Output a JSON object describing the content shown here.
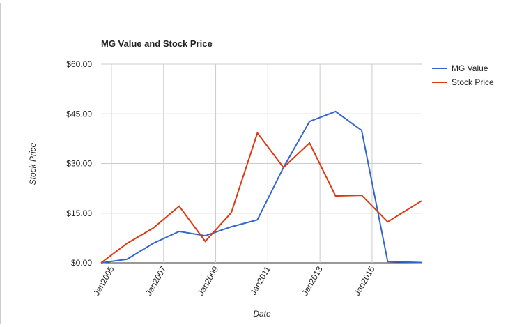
{
  "chart_data": {
    "type": "line",
    "title": "MG Value and Stock Price",
    "x_label": "Date",
    "y_label": "Stock Price",
    "x": [
      2004.6,
      2005.6,
      2006.6,
      2007.6,
      2008.6,
      2009.6,
      2010.6,
      2011.6,
      2012.6,
      2013.6,
      2014.6,
      2015.6,
      2016.9
    ],
    "series": [
      {
        "name": "MG Value",
        "color": "#3366cc",
        "values": [
          0,
          1.1,
          5.9,
          9.5,
          8.2,
          10.9,
          13,
          28.8,
          42.7,
          45.7,
          40,
          0.4,
          0.1
        ]
      },
      {
        "name": "Stock Price",
        "color": "#dc3912",
        "values": [
          0,
          5.9,
          10.5,
          17.1,
          6.5,
          15.2,
          39.2,
          28.8,
          36.2,
          20.2,
          20.4,
          12.4,
          18.7
        ]
      }
    ],
    "xlim": [
      2004.6,
      2016.9
    ],
    "xticks": [
      {
        "value": 2005,
        "label": "Jan2005"
      },
      {
        "value": 2007,
        "label": "Jan2007"
      },
      {
        "value": 2009,
        "label": "Jan2009"
      },
      {
        "value": 2011,
        "label": "Jan2011"
      },
      {
        "value": 2013,
        "label": "Jan2013"
      },
      {
        "value": 2015,
        "label": "Jan2015"
      }
    ],
    "ylim": [
      0,
      60
    ],
    "yticks": [
      {
        "value": 0,
        "label": "$0.00"
      },
      {
        "value": 15,
        "label": "$15.00"
      },
      {
        "value": 30,
        "label": "$30.00"
      },
      {
        "value": 45,
        "label": "$45.00"
      },
      {
        "value": 60,
        "label": "$60.00"
      }
    ],
    "grid": true,
    "legend": "right"
  }
}
